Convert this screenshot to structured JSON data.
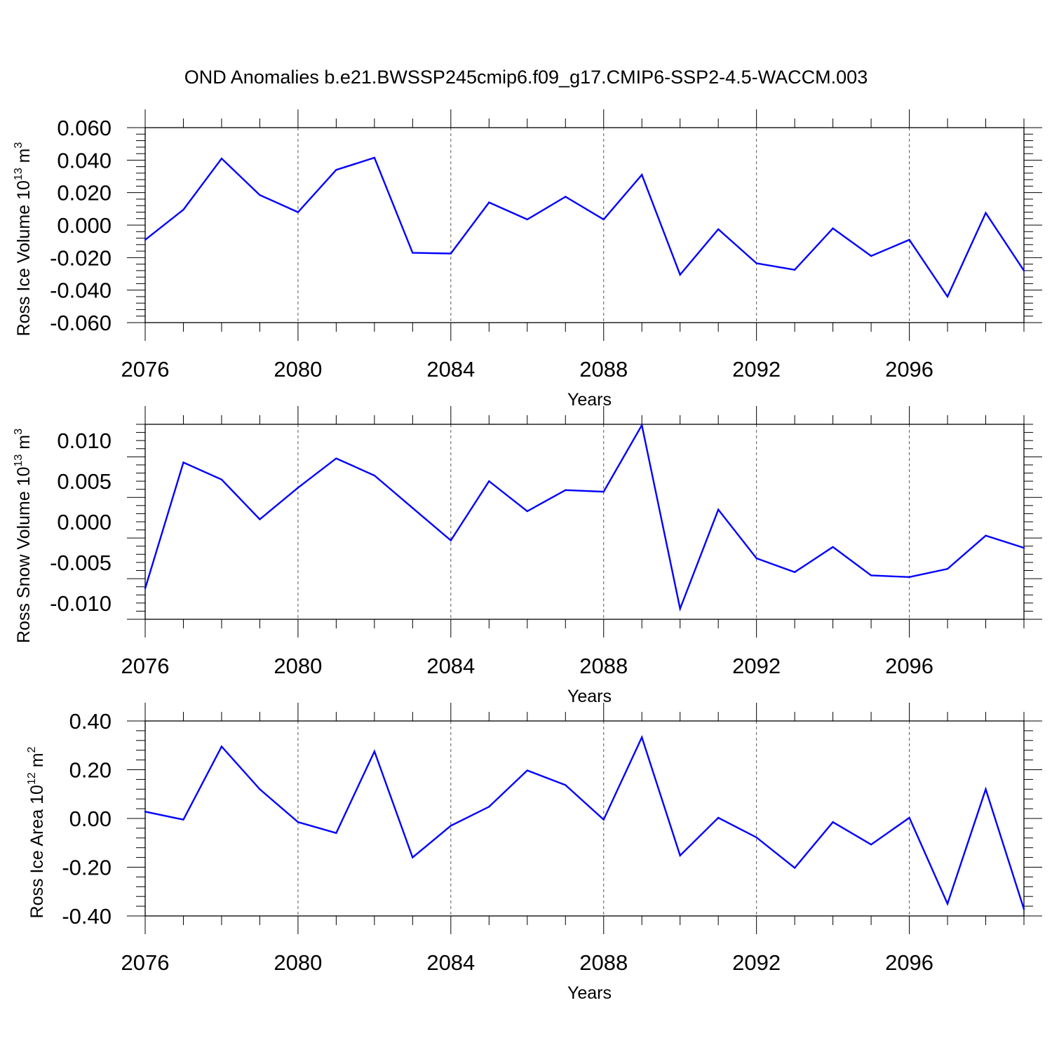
{
  "figure": {
    "title": "OND Anomalies b.e21.BWSSP245cmip6.f09_g17.CMIP6-SSP2-4.5-WACCM.003"
  },
  "colors": {
    "series": "#0000ff",
    "axes": "#000000",
    "grid": "#555555"
  },
  "chart_data": [
    {
      "type": "line",
      "xlabel": "Years",
      "ylabel": "Ross Ice Volume 10",
      "ylabel_exp": "13",
      "ylabel_unit": " m",
      "ylabel_unit_exp": "3",
      "xlim": [
        2076,
        2099
      ],
      "ylim": [
        -0.06,
        0.06
      ],
      "xticks": [
        2076,
        2080,
        2084,
        2088,
        2092,
        2096
      ],
      "xtick_labels": [
        "2076",
        "2080",
        "2084",
        "2088",
        "2092",
        "2096"
      ],
      "yticks": [
        -0.06,
        -0.04,
        -0.02,
        0.0,
        0.02,
        0.04,
        0.06
      ],
      "ytick_labels": [
        "-0.060",
        "-0.040",
        "-0.020",
        "0.000",
        "0.020",
        "0.040",
        "0.060"
      ],
      "grid": "vertical dashed at major x ticks",
      "x": [
        2076,
        2077,
        2078,
        2079,
        2080,
        2081,
        2082,
        2083,
        2084,
        2085,
        2086,
        2087,
        2088,
        2089,
        2090,
        2091,
        2092,
        2093,
        2094,
        2095,
        2096,
        2097,
        2098,
        2099
      ],
      "values": [
        -0.009,
        0.0095,
        0.041,
        0.0185,
        0.008,
        0.034,
        0.0415,
        -0.017,
        -0.0175,
        0.014,
        0.0035,
        0.0175,
        0.0035,
        0.031,
        -0.0305,
        -0.0025,
        -0.0235,
        -0.0275,
        -0.002,
        -0.019,
        -0.009,
        -0.044,
        0.0075,
        -0.028
      ]
    },
    {
      "type": "line",
      "xlabel": "Years",
      "ylabel": "Ross Snow Volume 10",
      "ylabel_exp": "13",
      "ylabel_unit": " m",
      "ylabel_unit_exp": "3",
      "xlim": [
        2076,
        2099
      ],
      "ylim": [
        -0.012,
        0.012
      ],
      "xticks": [
        2076,
        2080,
        2084,
        2088,
        2092,
        2096
      ],
      "xtick_labels": [
        "2076",
        "2080",
        "2084",
        "2088",
        "2092",
        "2096"
      ],
      "yticks": [
        -0.01,
        -0.005,
        0.0,
        0.005,
        0.01
      ],
      "ytick_labels": [
        "-0.010",
        "-0.005",
        "0.000",
        "0.005",
        "0.010"
      ],
      "grid": "vertical dashed at major x ticks",
      "x": [
        2076,
        2077,
        2078,
        2079,
        2080,
        2081,
        2082,
        2083,
        2084,
        2085,
        2086,
        2087,
        2088,
        2089,
        2090,
        2091,
        2092,
        2093,
        2094,
        2095,
        2096,
        2097,
        2098,
        2099
      ],
      "values": [
        -0.0082,
        0.0073,
        0.0052,
        0.0003,
        0.0042,
        0.0078,
        0.0057,
        0.0017,
        -0.0023,
        0.005,
        0.0013,
        0.0039,
        0.0037,
        0.0119,
        -0.0107,
        0.0015,
        -0.0045,
        -0.0062,
        -0.0031,
        -0.0066,
        -0.0068,
        -0.0058,
        -0.0017,
        -0.0032
      ]
    },
    {
      "type": "line",
      "xlabel": "Years",
      "ylabel": "Ross Ice Area 10",
      "ylabel_exp": "12",
      "ylabel_unit": " m",
      "ylabel_unit_exp": "2",
      "xlim": [
        2076,
        2099
      ],
      "ylim": [
        -0.4,
        0.4
      ],
      "xticks": [
        2076,
        2080,
        2084,
        2088,
        2092,
        2096
      ],
      "xtick_labels": [
        "2076",
        "2080",
        "2084",
        "2088",
        "2092",
        "2096"
      ],
      "yticks": [
        -0.4,
        -0.2,
        0.0,
        0.2,
        0.4
      ],
      "ytick_labels": [
        "-0.40",
        "-0.20",
        "0.00",
        "0.20",
        "0.40"
      ],
      "grid": "vertical dashed at major x ticks",
      "x": [
        2076,
        2077,
        2078,
        2079,
        2080,
        2081,
        2082,
        2083,
        2084,
        2085,
        2086,
        2087,
        2088,
        2089,
        2090,
        2091,
        2092,
        2093,
        2094,
        2095,
        2096,
        2097,
        2098,
        2099
      ],
      "values": [
        0.028,
        -0.005,
        0.295,
        0.12,
        -0.015,
        -0.06,
        0.275,
        -0.16,
        -0.03,
        0.048,
        0.197,
        0.137,
        -0.005,
        0.333,
        -0.152,
        0.003,
        -0.078,
        -0.203,
        -0.015,
        -0.107,
        0.003,
        -0.35,
        0.12,
        -0.372
      ]
    }
  ]
}
